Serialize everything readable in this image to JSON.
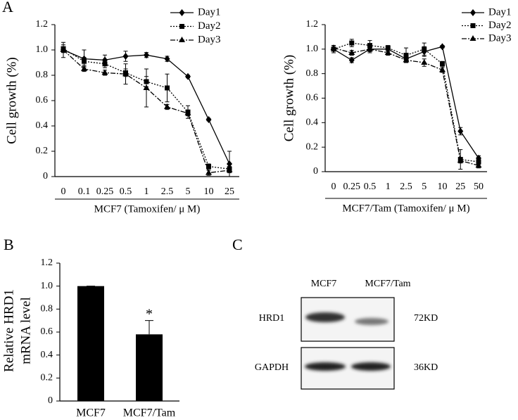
{
  "panel_labels": [
    "A",
    "B",
    "C"
  ],
  "chart_data": [
    {
      "type": "line",
      "ylabel": "Cell growth (%)",
      "xlabel": "MCF7  (Tamoxifen/ μ M)",
      "categories": [
        "0",
        "0.1",
        "0.25",
        "0.5",
        "1",
        "2.5",
        "5",
        "10",
        "25"
      ],
      "ylim": [
        0,
        1.2
      ],
      "yticks": [
        0,
        0.2,
        0.4,
        0.6,
        0.8,
        {
          "value": 1,
          "label": "1.0"
        },
        1.2
      ],
      "series": [
        {
          "name": "Day1",
          "color": "#000000",
          "marker": "diamond",
          "dash": "solid",
          "values": [
            1.0,
            0.93,
            0.92,
            0.95,
            0.96,
            0.93,
            0.79,
            0.45,
            0.1
          ],
          "errors": [
            0.06,
            0.07,
            0.04,
            0.04,
            0.02,
            0.02,
            0.01,
            0.01,
            0.1
          ]
        },
        {
          "name": "Day2",
          "color": "#000000",
          "marker": "square",
          "dash": "dotted",
          "values": [
            1.01,
            0.91,
            0.89,
            0.82,
            0.75,
            0.7,
            0.51,
            0.08,
            0.06
          ],
          "errors": [
            0.03,
            0.03,
            0.03,
            0.03,
            0.04,
            0.11,
            0.05,
            0.02,
            0.02
          ]
        },
        {
          "name": "Day3",
          "color": "#000000",
          "marker": "triangle",
          "dash": "dashdot",
          "values": [
            1.0,
            0.85,
            0.82,
            0.81,
            0.7,
            0.55,
            0.5,
            0.03,
            0.05
          ],
          "errors": [
            0.02,
            0.02,
            0.02,
            0.08,
            0.15,
            0.02,
            0.02,
            0.02,
            0.02
          ]
        }
      ]
    },
    {
      "type": "line",
      "ylabel": "Cell growth (%)",
      "xlabel": "MCF7/Tam (Tamoxifen/ μ M)",
      "categories": [
        "0",
        "0.25",
        "0.5",
        "1",
        "2.5",
        "5",
        "10",
        "25",
        "50"
      ],
      "ylim": [
        0,
        1.2
      ],
      "yticks": [
        0,
        0.2,
        0.4,
        0.6,
        0.8,
        {
          "value": 1,
          "label": "1.0"
        },
        1.2
      ],
      "series": [
        {
          "name": "Day1",
          "color": "#000000",
          "marker": "diamond",
          "dash": "solid",
          "values": [
            1.0,
            0.91,
            1.0,
            1.0,
            0.92,
            0.98,
            1.02,
            0.33,
            0.11
          ],
          "errors": [
            0.03,
            0.02,
            0.03,
            0.02,
            0.03,
            0.04,
            0.01,
            0.03,
            0.02
          ]
        },
        {
          "name": "Day2",
          "color": "#000000",
          "marker": "square",
          "dash": "dotted",
          "values": [
            1.0,
            1.05,
            1.03,
            1.01,
            0.95,
            1.0,
            0.88,
            0.1,
            0.08
          ],
          "errors": [
            0.03,
            0.03,
            0.04,
            0.02,
            0.06,
            0.05,
            0.02,
            0.08,
            0.02
          ]
        },
        {
          "name": "Day3",
          "color": "#000000",
          "marker": "triangle",
          "dash": "dashdot",
          "values": [
            1.01,
            0.97,
            1.0,
            0.97,
            0.91,
            0.89,
            0.83,
            0.09,
            0.05
          ],
          "errors": [
            0.02,
            0.02,
            0.02,
            0.02,
            0.02,
            0.03,
            0.02,
            0.02,
            0.02
          ]
        }
      ]
    },
    {
      "type": "bar",
      "ylabel": [
        "Relative HRD1",
        "mRNA level"
      ],
      "categories": [
        "MCF7",
        "MCF7/Tam"
      ],
      "values": [
        1.0,
        0.58
      ],
      "errors": [
        0,
        0.12
      ],
      "color": "#000000",
      "annotation": "*",
      "ylim": [
        0,
        1.2
      ],
      "yticks": [
        0,
        0.2,
        0.4,
        0.6,
        0.8,
        {
          "value": 1,
          "label": "1.0"
        },
        1.2
      ]
    }
  ],
  "blot": {
    "columns": [
      "MCF7",
      "MCF7/Tam"
    ],
    "rows": [
      {
        "label": "HRD1",
        "size": "72KD"
      },
      {
        "label": "GAPDH",
        "size": "36KD"
      }
    ]
  }
}
